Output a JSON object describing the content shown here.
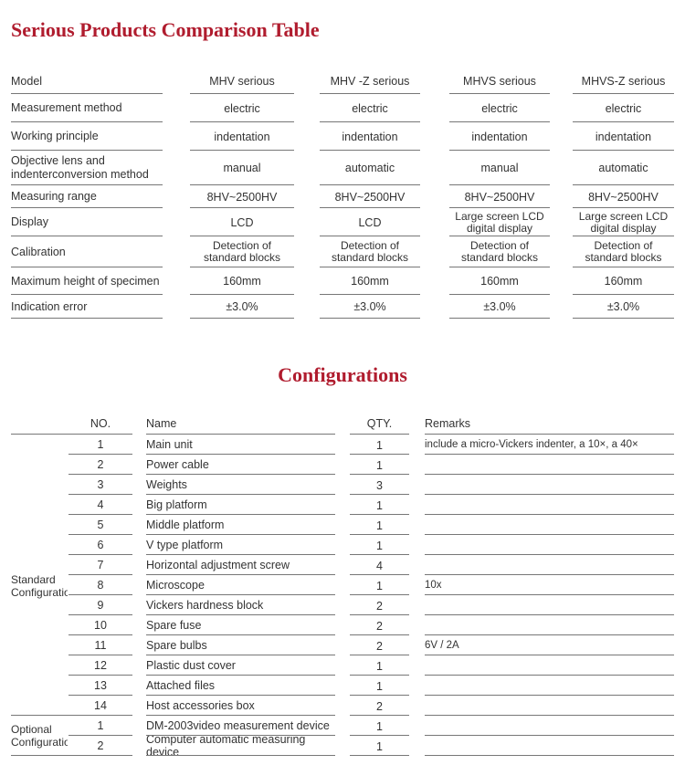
{
  "comparison": {
    "title": "Serious Products Comparison Table",
    "rows": [
      {
        "label": "Model",
        "values": [
          "MHV serious",
          "MHV -Z serious",
          "MHVS serious",
          "MHVS-Z serious"
        ]
      },
      {
        "label": "Measurement method",
        "values": [
          "electric",
          "electric",
          "electric",
          "electric"
        ]
      },
      {
        "label": "Working principle",
        "values": [
          "indentation",
          "indentation",
          "indentation",
          "indentation"
        ]
      },
      {
        "label": "Objective lens and indenterconversion method",
        "values": [
          "manual",
          "automatic",
          "manual",
          "automatic"
        ]
      },
      {
        "label": "Measuring range",
        "values": [
          "8HV~2500HV",
          "8HV~2500HV",
          "8HV~2500HV",
          "8HV~2500HV"
        ]
      },
      {
        "label": "Display",
        "values": [
          "LCD",
          "LCD",
          "Large screen LCD digital display",
          "Large screen LCD digital display"
        ]
      },
      {
        "label": "Calibration",
        "values": [
          "Detection of standard blocks",
          "Detection of standard blocks",
          "Detection of standard blocks",
          "Detection of standard blocks"
        ]
      },
      {
        "label": "Maximum height of specimen",
        "values": [
          "160mm",
          "160mm",
          "160mm",
          "160mm"
        ]
      },
      {
        "label": "Indication error",
        "values": [
          "±3.0%",
          "±3.0%",
          "±3.0%",
          "±3.0%"
        ]
      }
    ]
  },
  "configurations": {
    "title": "Configurations",
    "headers": {
      "no": "NO.",
      "name": "Name",
      "qty": "QTY.",
      "remarks": "Remarks"
    },
    "groups": [
      {
        "label": "Standard Configuration",
        "items": [
          {
            "no": "1",
            "name": "Main unit",
            "qty": "1",
            "remarks": "include a micro-Vickers indenter, a 10×, a 40×"
          },
          {
            "no": "2",
            "name": "Power cable",
            "qty": "1",
            "remarks": ""
          },
          {
            "no": "3",
            "name": "Weights",
            "qty": "3",
            "remarks": ""
          },
          {
            "no": "4",
            "name": "Big platform",
            "qty": "1",
            "remarks": ""
          },
          {
            "no": "5",
            "name": "Middle platform",
            "qty": "1",
            "remarks": ""
          },
          {
            "no": "6",
            "name": "V type platform",
            "qty": "1",
            "remarks": ""
          },
          {
            "no": "7",
            "name": "Horizontal adjustment screw",
            "qty": "4",
            "remarks": ""
          },
          {
            "no": "8",
            "name": "Microscope",
            "qty": "1",
            "remarks": "10x"
          },
          {
            "no": "9",
            "name": "Vickers hardness block",
            "qty": "2",
            "remarks": ""
          },
          {
            "no": "10",
            "name": "Spare fuse",
            "qty": "2",
            "remarks": ""
          },
          {
            "no": "11",
            "name": "Spare bulbs",
            "qty": "2",
            "remarks": "6V / 2A"
          },
          {
            "no": "12",
            "name": "Plastic dust cover",
            "qty": "1",
            "remarks": ""
          },
          {
            "no": "13",
            "name": "Attached files",
            "qty": "1",
            "remarks": ""
          },
          {
            "no": "14",
            "name": "Host accessories box",
            "qty": "2",
            "remarks": ""
          }
        ]
      },
      {
        "label": "Optional Configuration",
        "items": [
          {
            "no": "1",
            "name": "DM-2003video measurement device",
            "qty": "1",
            "remarks": ""
          },
          {
            "no": "2",
            "name": "Computer automatic measuring device",
            "qty": "1",
            "remarks": ""
          }
        ]
      }
    ]
  }
}
